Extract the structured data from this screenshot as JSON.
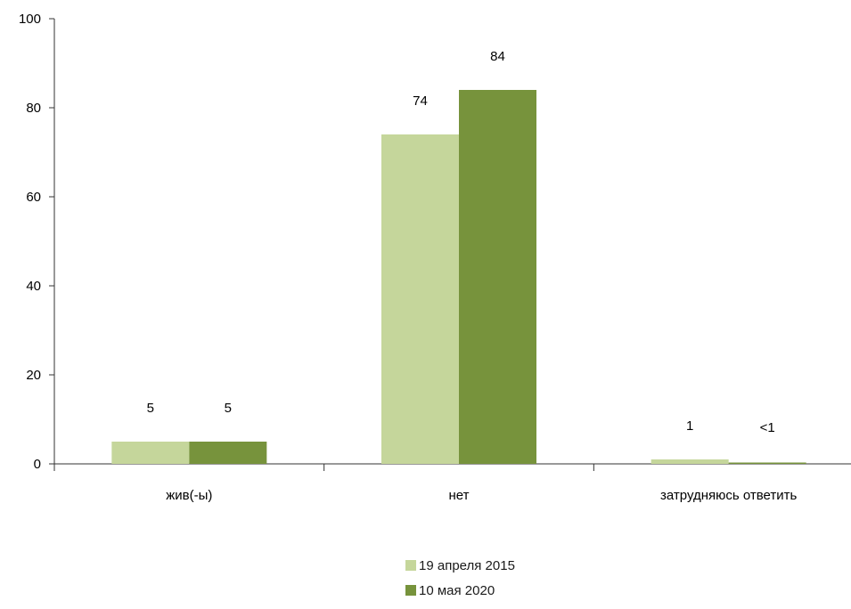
{
  "chart_data": {
    "type": "bar",
    "categories": [
      "жив(-ы)",
      "нет",
      "затрудняюсь ответить"
    ],
    "series": [
      {
        "name": "19 апреля 2015",
        "values": [
          5,
          74,
          1
        ],
        "labels": [
          "5",
          "74",
          "1"
        ],
        "color": "#c5d69b"
      },
      {
        "name": "10 мая 2020",
        "values": [
          5,
          84,
          0.3
        ],
        "labels": [
          "5",
          "84",
          "<1"
        ],
        "color": "#77933c"
      }
    ],
    "ylim": [
      0,
      100
    ],
    "yticks": [
      "0",
      "20",
      "40",
      "60",
      "80",
      "100"
    ],
    "title": "",
    "xlabel": "",
    "ylabel": "",
    "grid": false,
    "legend_position": "bottom"
  }
}
